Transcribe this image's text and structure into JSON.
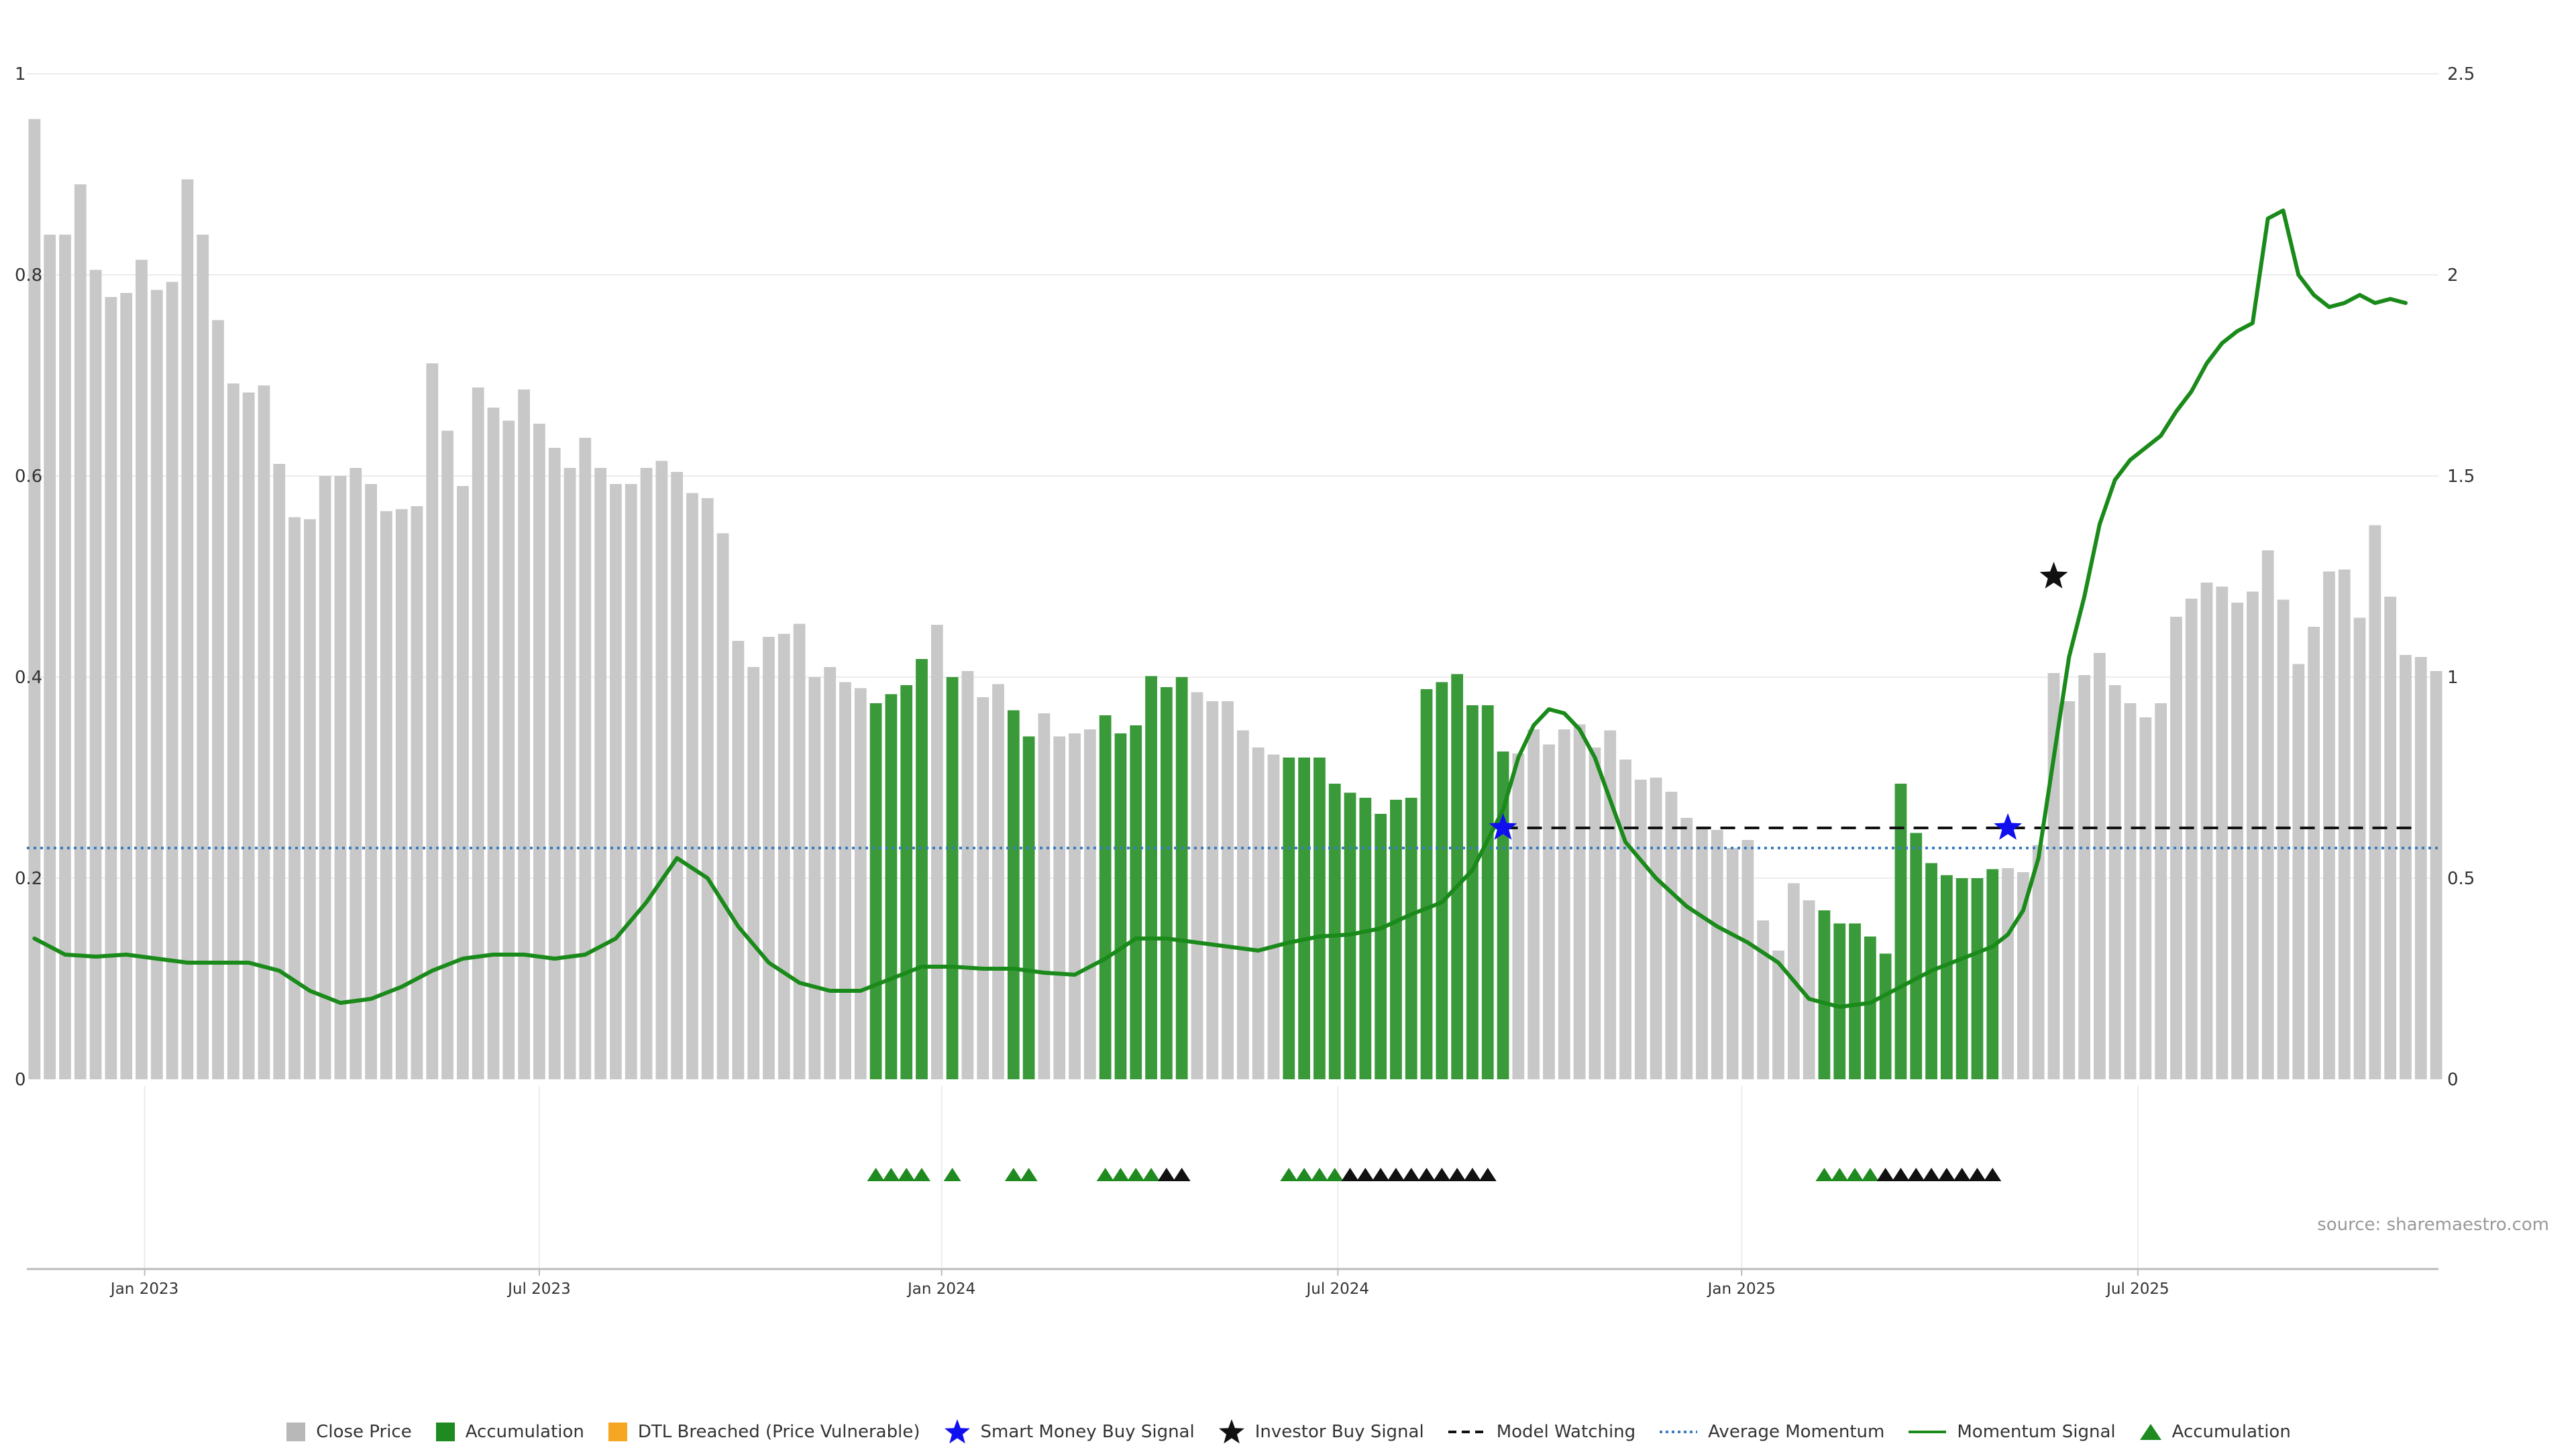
{
  "chart_data": {
    "type": "bar",
    "title": "",
    "xlabel": "",
    "ylabel": "",
    "ylim_left": [
      0,
      1
    ],
    "ylim_right": [
      0,
      2.5
    ],
    "left_ticks": [
      "0",
      "0.2",
      "0.4",
      "0.6",
      "0.8",
      "1"
    ],
    "left_tick_values": [
      0,
      0.2,
      0.4,
      0.6,
      0.8,
      1
    ],
    "right_ticks": [
      "0",
      "0.5",
      "1",
      "1.5",
      "2",
      "2.5"
    ],
    "right_tick_values": [
      0,
      0.5,
      1,
      1.5,
      2,
      2.5
    ],
    "x_ticks": [
      "Jan 2023",
      "Jul 2023",
      "Jan 2024",
      "Jul 2024",
      "Jan 2025",
      "Jul 2025"
    ],
    "x_tick_positions": [
      7.2,
      33.0,
      59.3,
      85.2,
      111.6,
      137.5
    ],
    "grid": true,
    "colors": {
      "close": "#c8c8c8",
      "accumulation": "#3a9a3a",
      "dtl": "#f5a623",
      "momentum": "#1a8a1a",
      "average": "#3b7dbf",
      "watching": "#111111",
      "smart_money": "#1010ee",
      "investor": "#111111"
    },
    "bars": {
      "values": [
        0.955,
        0.84,
        0.84,
        0.89,
        0.805,
        0.778,
        0.782,
        0.815,
        0.785,
        0.793,
        0.895,
        0.84,
        0.755,
        0.692,
        0.683,
        0.69,
        0.612,
        0.559,
        0.557,
        0.6,
        0.6,
        0.608,
        0.592,
        0.565,
        0.567,
        0.57,
        0.712,
        0.645,
        0.59,
        0.688,
        0.668,
        0.655,
        0.686,
        0.652,
        0.628,
        0.608,
        0.638,
        0.608,
        0.592,
        0.592,
        0.608,
        0.615,
        0.604,
        0.583,
        0.578,
        0.543,
        0.436,
        0.41,
        0.44,
        0.443,
        0.453,
        0.4,
        0.41,
        0.395,
        0.389,
        0.374,
        0.383,
        0.392,
        0.418,
        0.452,
        0.4,
        0.406,
        0.38,
        0.393,
        0.367,
        0.341,
        0.364,
        0.341,
        0.344,
        0.348,
        0.362,
        0.344,
        0.352,
        0.401,
        0.39,
        0.4,
        0.385,
        0.376,
        0.376,
        0.347,
        0.33,
        0.323,
        0.32,
        0.32,
        0.32,
        0.294,
        0.285,
        0.28,
        0.264,
        0.278,
        0.28,
        0.388,
        0.395,
        0.403,
        0.372,
        0.372,
        0.326,
        0.324,
        0.348,
        0.333,
        0.348,
        0.353,
        0.33,
        0.347,
        0.318,
        0.298,
        0.3,
        0.286,
        0.26,
        0.25,
        0.248,
        0.23,
        0.238,
        0.158,
        0.128,
        0.195,
        0.178,
        0.168,
        0.155,
        0.155,
        0.142,
        0.125,
        0.294,
        0.245,
        0.215,
        0.203,
        0.2,
        0.2,
        0.209,
        0.21,
        0.206,
        0.233,
        0.404,
        0.376,
        0.402,
        0.424,
        0.392,
        0.374,
        0.36,
        0.374,
        0.46,
        0.478,
        0.494,
        0.49,
        0.474,
        0.485,
        0.526,
        0.477,
        0.413,
        0.45,
        0.505,
        0.507,
        0.459,
        0.551,
        0.48,
        0.422,
        0.42,
        0.406
      ],
      "accumulation_indices": [
        55,
        56,
        57,
        58,
        60,
        64,
        65,
        70,
        71,
        72,
        73,
        74,
        75,
        82,
        83,
        84,
        85,
        86,
        87,
        88,
        89,
        90,
        91,
        92,
        93,
        94,
        95,
        96,
        117,
        118,
        119,
        120,
        121,
        122,
        123,
        124,
        125,
        126,
        127,
        128
      ]
    },
    "momentum_signal": {
      "x": [
        0,
        2,
        4,
        6,
        8,
        10,
        12,
        14,
        16,
        18,
        20,
        22,
        24,
        26,
        28,
        30,
        32,
        34,
        36,
        38,
        40,
        42,
        44,
        46,
        48,
        50,
        52,
        54,
        56,
        58,
        60,
        62,
        64,
        66,
        68,
        70,
        72,
        74,
        76,
        78,
        80,
        82,
        84,
        86,
        88,
        90,
        92,
        94,
        96,
        97,
        98,
        99,
        100,
        101,
        102,
        104,
        106,
        108,
        110,
        112,
        114,
        116,
        118,
        120,
        122,
        124,
        126,
        128,
        129,
        130,
        131,
        132,
        133,
        134,
        135,
        136,
        137,
        138,
        139,
        140,
        141,
        142,
        143,
        144,
        145,
        146,
        147,
        148,
        149,
        150,
        151,
        152,
        153,
        154,
        155
      ],
      "y": [
        0.35,
        0.31,
        0.305,
        0.31,
        0.3,
        0.29,
        0.29,
        0.29,
        0.27,
        0.22,
        0.19,
        0.2,
        0.23,
        0.27,
        0.3,
        0.31,
        0.31,
        0.3,
        0.31,
        0.35,
        0.44,
        0.55,
        0.5,
        0.38,
        0.29,
        0.24,
        0.22,
        0.22,
        0.25,
        0.28,
        0.28,
        0.275,
        0.275,
        0.265,
        0.26,
        0.3,
        0.35,
        0.35,
        0.34,
        0.33,
        0.32,
        0.34,
        0.355,
        0.36,
        0.375,
        0.41,
        0.44,
        0.52,
        0.67,
        0.8,
        0.88,
        0.92,
        0.91,
        0.87,
        0.8,
        0.59,
        0.5,
        0.43,
        0.38,
        0.34,
        0.29,
        0.2,
        0.18,
        0.19,
        0.23,
        0.27,
        0.3,
        0.33,
        0.36,
        0.42,
        0.55,
        0.8,
        1.05,
        1.2,
        1.38,
        1.49,
        1.54,
        1.57,
        1.6,
        1.66,
        1.71,
        1.78,
        1.83,
        1.86,
        1.88,
        2.14,
        2.16,
        2.0,
        1.95,
        1.92,
        1.93,
        1.95,
        1.93,
        1.94,
        1.93
      ]
    },
    "average_momentum": 0.23,
    "model_watching": {
      "value": 0.25,
      "x_start": 96.0,
      "x_end": 155.5
    },
    "smart_money_buy_signals": [
      {
        "x": 96.0,
        "y": 0.25
      },
      {
        "x": 129.0,
        "y": 0.25
      }
    ],
    "investor_buy_signals": [
      {
        "x": 132.0,
        "y": 0.5
      }
    ],
    "accumulation_markers": [
      55,
      56,
      57,
      58,
      60,
      64,
      65,
      70,
      71,
      72,
      73,
      82,
      83,
      84,
      85
    ],
    "investor_markers": [
      74,
      75,
      86,
      87,
      88,
      89,
      90,
      91,
      92,
      93,
      94,
      95,
      121,
      122,
      123,
      124,
      125,
      126,
      127,
      128
    ],
    "accumulation_markers_2": [
      117,
      118,
      119,
      120
    ]
  },
  "legend": [
    {
      "label": "Close Price",
      "icon": "square",
      "color": "#b8b8b8"
    },
    {
      "label": "Accumulation",
      "icon": "square",
      "color": "#1f8a1f"
    },
    {
      "label": "DTL Breached (Price Vulnerable)",
      "icon": "square",
      "color": "#f5a623"
    },
    {
      "label": "Smart Money Buy Signal",
      "icon": "star",
      "color": "#1010ee"
    },
    {
      "label": "Investor Buy Signal",
      "icon": "star",
      "color": "#111111"
    },
    {
      "label": "Model Watching",
      "icon": "dashed-line",
      "color": "#111111"
    },
    {
      "label": "Average Momentum",
      "icon": "dotted-line",
      "color": "#3b7dbf"
    },
    {
      "label": "Momentum Signal",
      "icon": "solid-line",
      "color": "#1a8a1a"
    },
    {
      "label": "Accumulation",
      "icon": "triangle",
      "color": "#1f8a1f"
    }
  ],
  "source": "source: sharemaestro.com"
}
